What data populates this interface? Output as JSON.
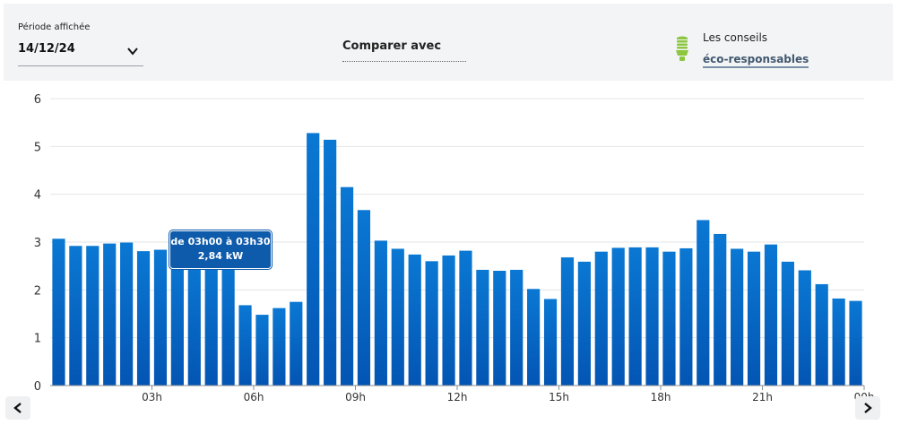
{
  "header": {
    "period_label": "Période affichée",
    "period_value": "14/12/24",
    "compare_label": "Comparer avec",
    "tips_line1": "Les conseils",
    "tips_link": "éco-responsables",
    "tips_icon": "lightbulb-icon",
    "tips_icon_color": "#8dc63f"
  },
  "tooltip": {
    "range": "de 03h00 à 03h30",
    "value": "2,84 kW"
  },
  "colors": {
    "bar_top": "#0a78d3",
    "bar_bottom": "#0455b3",
    "grid": "#e3e5e8",
    "tooltip_bg": "#0e5aab"
  },
  "chart_data": {
    "type": "bar",
    "x_tick_labels": [
      "03h",
      "06h",
      "09h",
      "12h",
      "15h",
      "18h",
      "21h",
      "00h"
    ],
    "ylim": [
      0,
      6
    ],
    "yticks": [
      0,
      1,
      2,
      3,
      4,
      5,
      6
    ],
    "grid": true,
    "highlighted_index": 6,
    "values": [
      3.07,
      2.92,
      2.92,
      2.97,
      2.99,
      2.81,
      2.84,
      2.7,
      2.6,
      2.6,
      2.6,
      1.68,
      1.48,
      1.62,
      1.75,
      5.28,
      5.14,
      4.15,
      3.67,
      3.03,
      2.86,
      2.74,
      2.6,
      2.72,
      2.82,
      2.42,
      2.4,
      2.42,
      2.02,
      1.81,
      2.68,
      2.59,
      2.8,
      2.88,
      2.89,
      2.89,
      2.8,
      2.87,
      3.46,
      3.17,
      2.86,
      2.8,
      2.95,
      2.59,
      2.41,
      2.12,
      1.82,
      1.77
    ]
  }
}
